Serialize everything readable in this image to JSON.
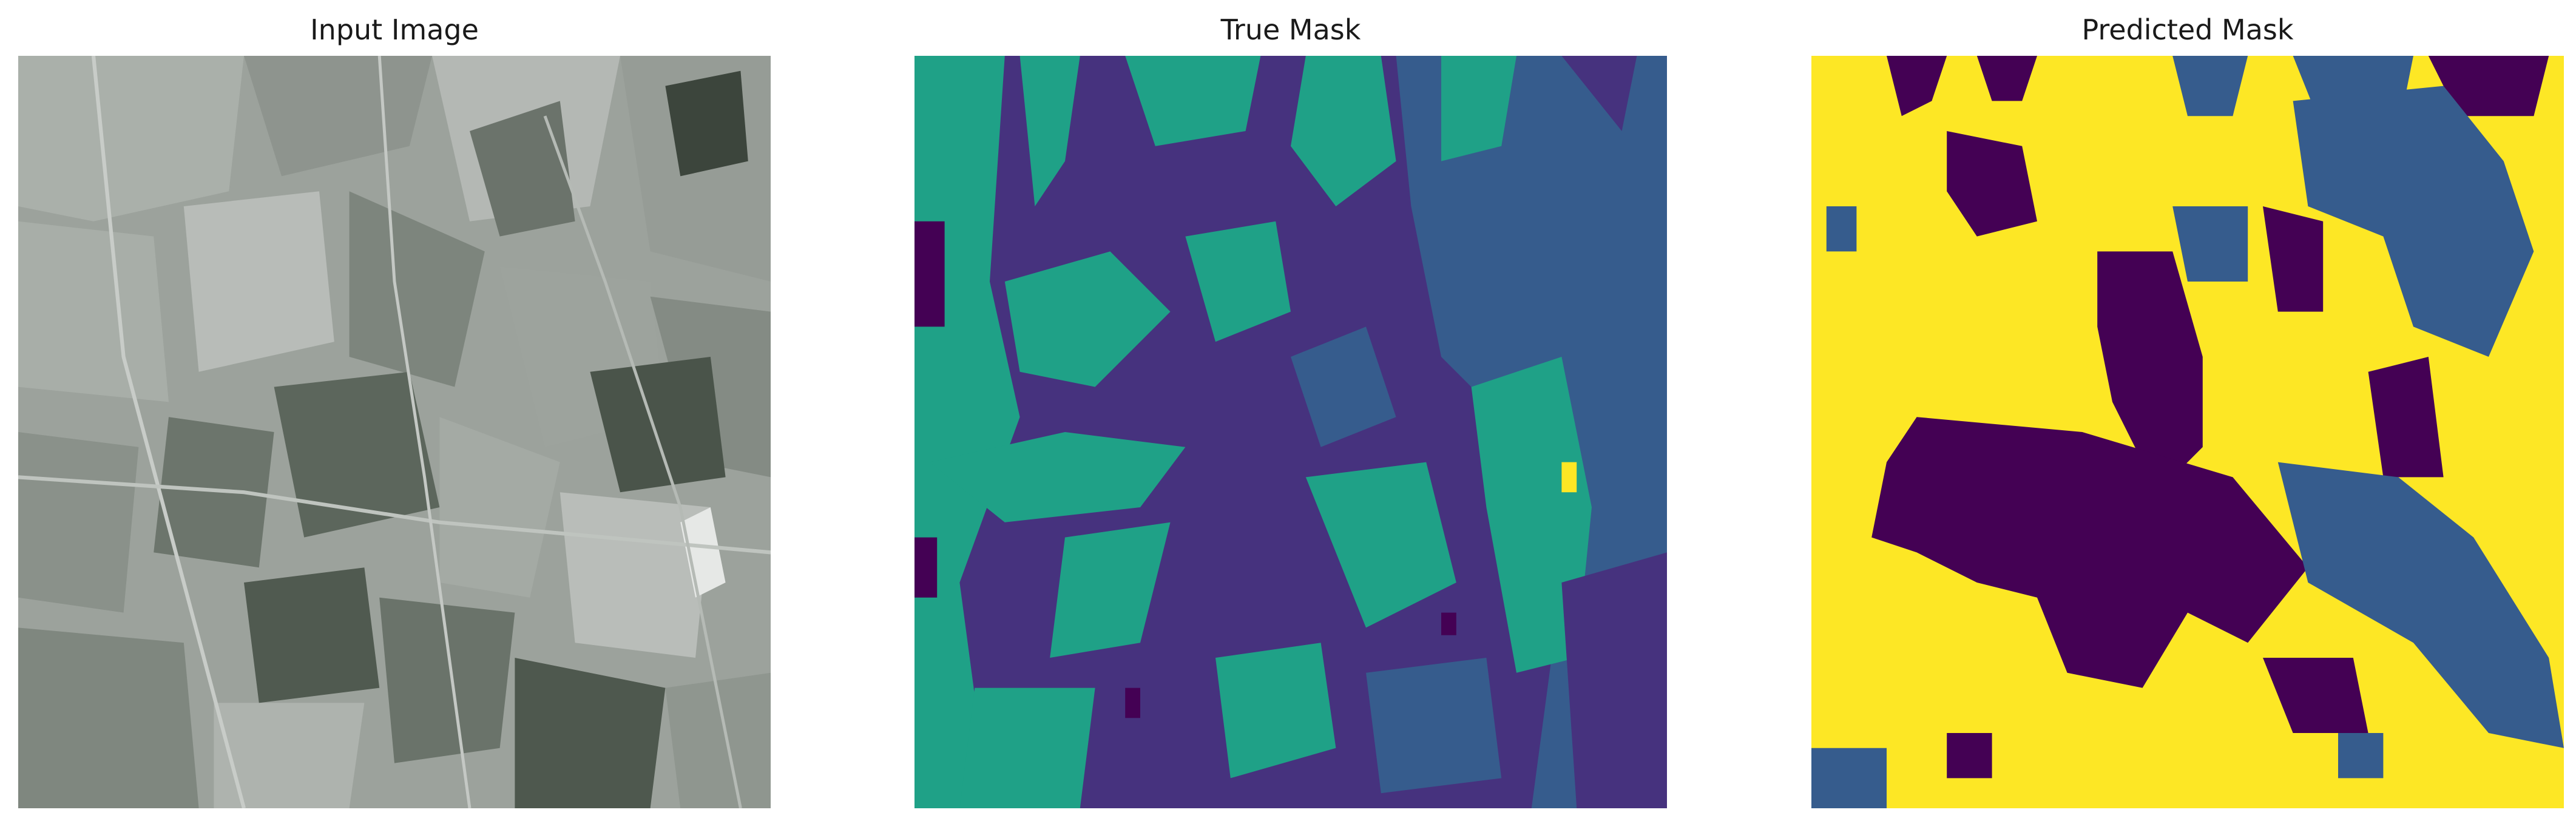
{
  "figure": {
    "panels": [
      {
        "title": "Input Image",
        "kind": "satellite-photo"
      },
      {
        "title": "True Mask",
        "kind": "segmentation-mask"
      },
      {
        "title": "Predicted Mask",
        "kind": "segmentation-mask"
      }
    ]
  },
  "colors": {
    "viridis_dark_purple": "#440154",
    "viridis_indigo": "#46327e",
    "viridis_blue": "#365c8d",
    "viridis_teal": "#1fa187",
    "viridis_yellow": "#fde725",
    "photo_gray": "#9aa09a"
  }
}
